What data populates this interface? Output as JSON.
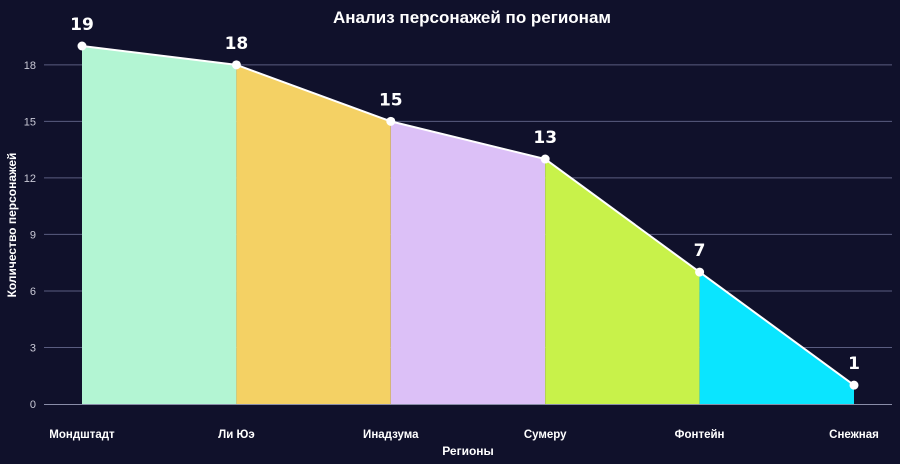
{
  "chart_data": {
    "type": "area",
    "title": "Анализ персонажей по регионам",
    "xlabel": "Регионы",
    "ylabel": "Количество персонажей",
    "categories": [
      "Мондштадт",
      "Ли Юэ",
      "Инадзума",
      "Сумеру",
      "Фонтейн",
      "Снежная"
    ],
    "values": [
      19,
      18,
      15,
      13,
      7,
      1
    ],
    "segment_colors": [
      "#b3f5d3",
      "#f4d164",
      "#dcc0f7",
      "#c8f24a",
      "#0ae5ff"
    ],
    "ylim": [
      0,
      20
    ],
    "yticks": [
      0,
      3,
      6,
      9,
      12,
      15,
      18
    ],
    "grid": true,
    "background": "#10112b",
    "line_color": "#ffffff"
  }
}
